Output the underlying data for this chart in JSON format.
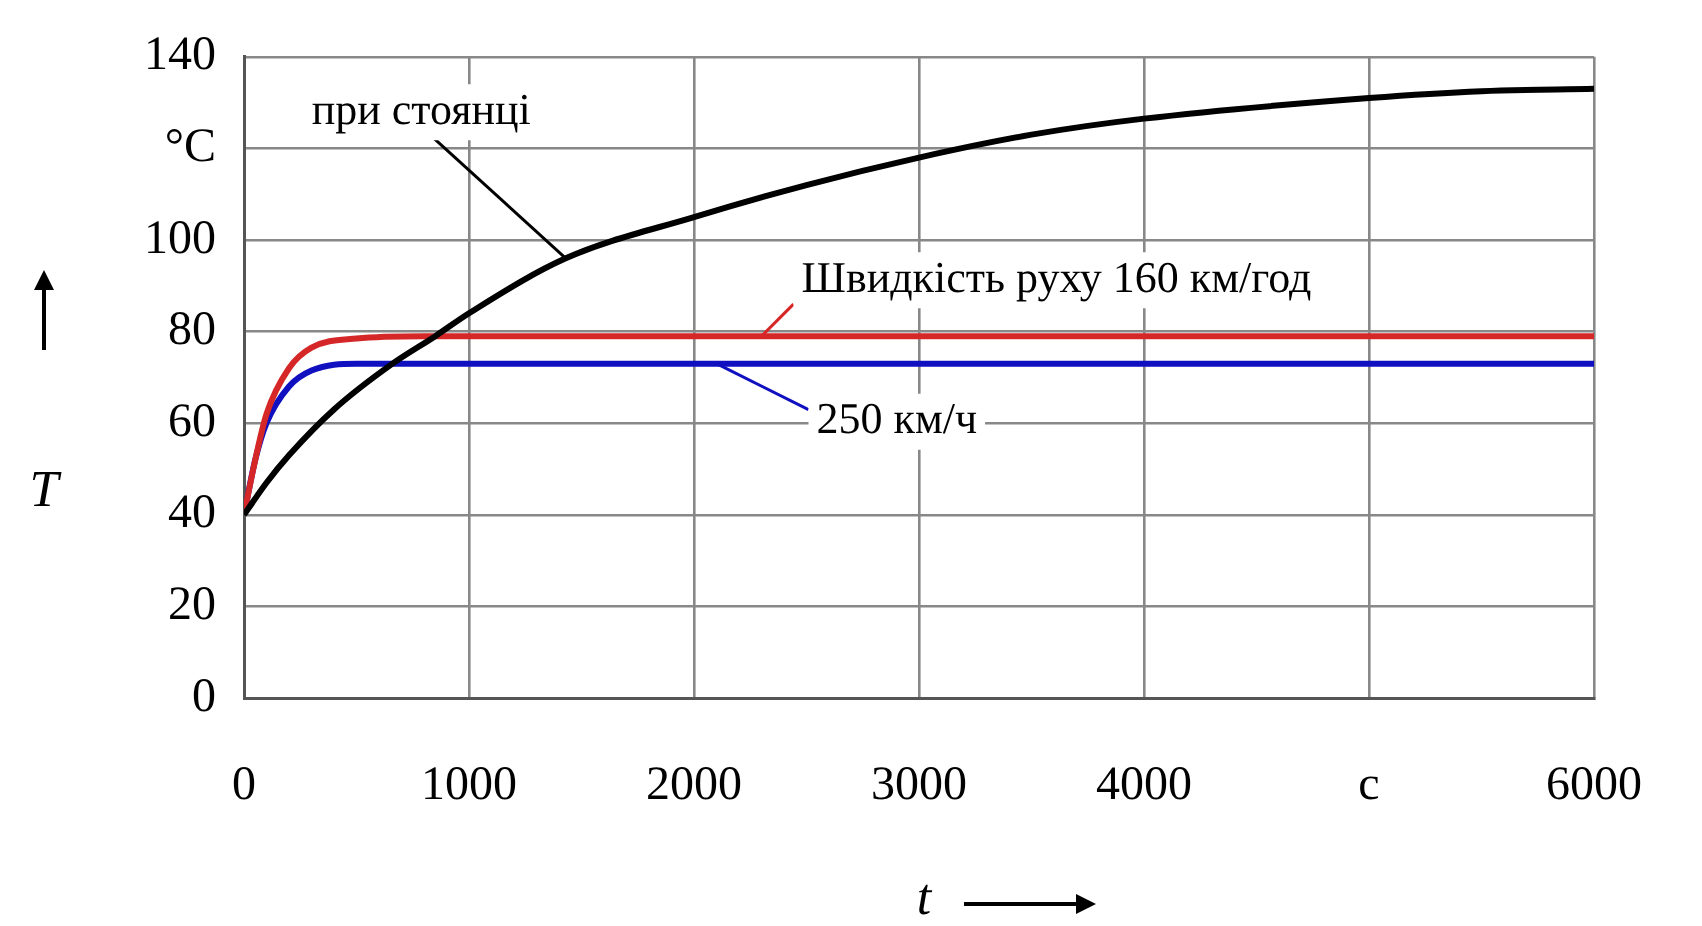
{
  "chart_data": {
    "type": "line",
    "xlabel": "t",
    "ylabel": "T",
    "xlim": [
      0,
      6000
    ],
    "xticks": [
      0,
      1000,
      2000,
      3000,
      4000,
      {
        "value": 5000,
        "label": "с"
      },
      6000
    ],
    "ylim": [
      0,
      140
    ],
    "yticks": [
      0,
      20,
      40,
      60,
      80,
      100,
      {
        "value": 120,
        "label": "°C"
      },
      140
    ],
    "grid": true,
    "legend": false,
    "marker": "none",
    "line_style": "solid",
    "series": [
      {
        "color": "#000000",
        "x": [
          0,
          100,
          200,
          400,
          660,
          850,
          1000,
          1430,
          2000,
          2500,
          3000,
          3500,
          4000,
          5000,
          5500,
          6000
        ],
        "values": [
          40,
          47,
          53,
          63,
          73,
          79,
          84,
          96,
          105,
          112,
          118,
          123,
          126.5,
          131,
          132.5,
          133
        ]
      },
      {
        "color": "#d62728",
        "x": [
          0,
          50,
          100,
          200,
          300,
          500,
          800,
          6000
        ],
        "values": [
          40,
          52,
          62,
          72,
          76.5,
          78.5,
          79,
          79
        ]
      },
      {
        "color": "#1010c0",
        "x": [
          0,
          50,
          100,
          200,
          300,
          500,
          6000
        ],
        "values": [
          40,
          52,
          60,
          68,
          71.5,
          73,
          73
        ]
      }
    ],
    "annotations": [
      {
        "text": "при стоянці",
        "x": 1430,
        "y": 96
      },
      {
        "text": "Швидкість руху 160 км/год",
        "x": 2300,
        "y": 79
      },
      {
        "text": "250 км/ч",
        "x": 2100,
        "y": 73
      }
    ]
  }
}
